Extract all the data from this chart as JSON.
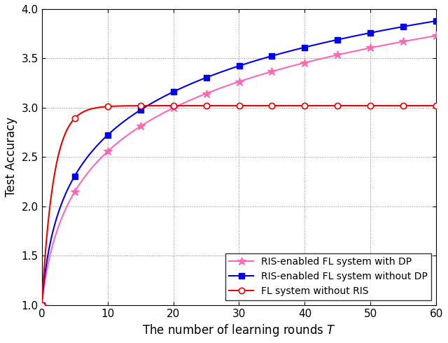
{
  "title": "",
  "xlabel": "The number of learning rounds $T$",
  "ylabel": "Test Accuracy",
  "xlim": [
    0,
    60
  ],
  "ylim": [
    1,
    4
  ],
  "yticks": [
    1,
    1.5,
    2,
    2.5,
    3,
    3.5,
    4
  ],
  "xticks": [
    0,
    10,
    20,
    30,
    40,
    50,
    60
  ],
  "legend": [
    "RIS-enabled FL system with DP",
    "RIS-enabled FL system without DP",
    "FL system without RIS"
  ],
  "color_with_dp": "#FF69B4",
  "color_without_dp": "#0000EE",
  "color_without_ris": "#EE0000",
  "line_width": 1.5,
  "marker_size_star": 9,
  "marker_size_sq": 6,
  "marker_size_circ": 6,
  "grid_style": ":",
  "grid_color": "#888888",
  "grid_lw": 0.7,
  "legend_fontsize": 10,
  "axis_fontsize": 12,
  "tick_fontsize": 11,
  "markevery": 5
}
